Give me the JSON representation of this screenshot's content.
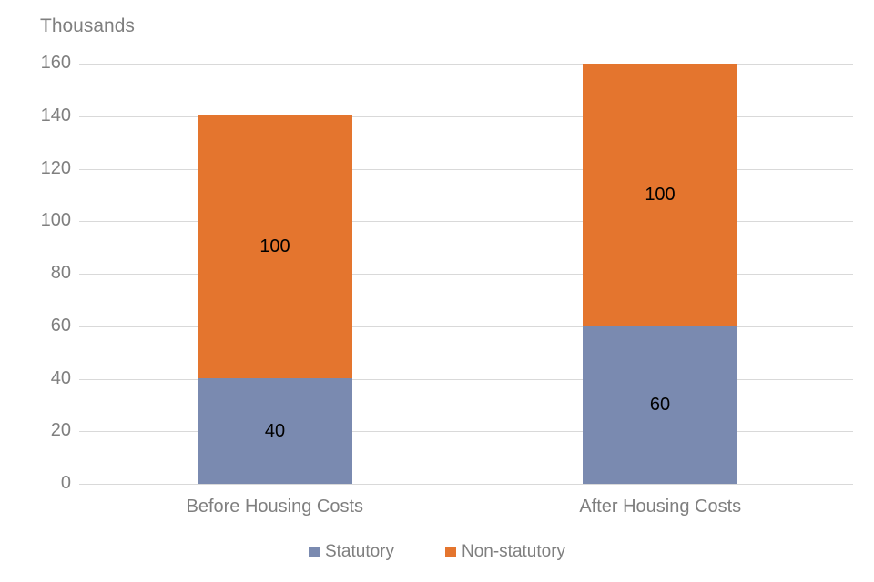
{
  "chart_data": {
    "type": "bar",
    "stacked": true,
    "title": "Thousands",
    "categories": [
      "Before Housing Costs",
      "After Housing Costs"
    ],
    "series": [
      {
        "name": "Statutory",
        "color": "#7a8ab0",
        "values": [
          40,
          60
        ]
      },
      {
        "name": "Non-statutory",
        "color": "#e4752e",
        "values": [
          100,
          100
        ]
      }
    ],
    "xlabel": "",
    "ylabel": "Thousands",
    "ylim": [
      0,
      160
    ],
    "ytick_step": 20,
    "grid": true,
    "legend_position": "bottom",
    "data_labels": true,
    "data_label_color": "#000000"
  },
  "styles": {
    "gridline_color": "#d9d9d9",
    "axis_text_color": "#7f7f7f",
    "background_color": "#ffffff"
  }
}
